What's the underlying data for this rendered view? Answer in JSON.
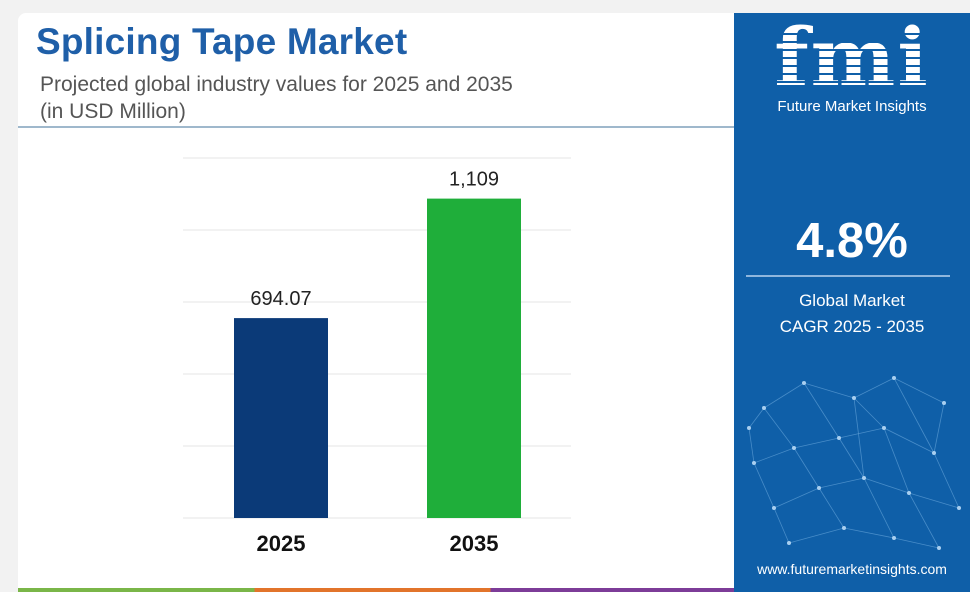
{
  "title": "Splicing Tape Market",
  "subtitle_line1": "Projected global industry values for 2025 and 2035",
  "subtitle_line2": "(in USD Million)",
  "brand": {
    "logo_text": "fmi",
    "name": "Future Market Insights",
    "website": "www.futuremarketinsights.com",
    "color": "#0f5fa8"
  },
  "cagr": {
    "value": "4.8%",
    "label_line1": "Global Market",
    "label_line2": "CAGR 2025 - 2035"
  },
  "chart_data": {
    "type": "bar",
    "categories": [
      "2025",
      "2035"
    ],
    "values": [
      694.07,
      1109
    ],
    "value_labels": [
      "694.07",
      "1,109"
    ],
    "colors": [
      "#0b3a78",
      "#1fae3a"
    ],
    "ylim": [
      0,
      1250
    ],
    "grid": true
  }
}
